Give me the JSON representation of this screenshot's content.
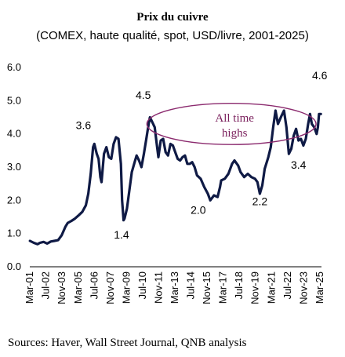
{
  "chart_data": {
    "type": "line",
    "title": "Prix du cuivre",
    "subtitle": "(COMEX, haute qualité, spot, USD/livre, 2001-2025)",
    "source": "Sources: Haver, Wall Street Journal, QNB analysis",
    "ylim": [
      0,
      6
    ],
    "yticks": [
      "0.0",
      "1.0",
      "2.0",
      "3.0",
      "4.0",
      "5.0",
      "6.0"
    ],
    "xlim": [
      2001.16,
      2025.3
    ],
    "xticks": [
      {
        "label": "Mar-01",
        "x": 2001.17
      },
      {
        "label": "Jul-02",
        "x": 2002.5
      },
      {
        "label": "Nov-03",
        "x": 2003.83
      },
      {
        "label": "Mar-05",
        "x": 2005.17
      },
      {
        "label": "Jul-06",
        "x": 2006.5
      },
      {
        "label": "Nov-07",
        "x": 2007.83
      },
      {
        "label": "Mar-09",
        "x": 2009.17
      },
      {
        "label": "Jul-10",
        "x": 2010.5
      },
      {
        "label": "Nov-11",
        "x": 2011.83
      },
      {
        "label": "Mar-13",
        "x": 2013.17
      },
      {
        "label": "Jul-14",
        "x": 2014.5
      },
      {
        "label": "Nov-15",
        "x": 2015.83
      },
      {
        "label": "Mar-17",
        "x": 2017.17
      },
      {
        "label": "Jul-18",
        "x": 2018.5
      },
      {
        "label": "Nov-19",
        "x": 2019.83
      },
      {
        "label": "Mar-21",
        "x": 2021.17
      },
      {
        "label": "Jul-22",
        "x": 2022.5
      },
      {
        "label": "Nov-23",
        "x": 2023.83
      },
      {
        "label": "Mar-25",
        "x": 2025.17
      }
    ],
    "line_color": "#0f1a45",
    "ellipse_color": "#8b2a6e",
    "series": [
      {
        "x": [
          2001.17,
          2001.5,
          2001.8,
          2002.0,
          2002.3,
          2002.6,
          2002.9,
          2003.2,
          2003.5,
          2003.8,
          2004.1,
          2004.3,
          2004.6,
          2004.9,
          2005.2,
          2005.5,
          2005.8,
          2006.0,
          2006.2,
          2006.4,
          2006.5,
          2006.7,
          2006.85,
          2007.0,
          2007.1,
          2007.3,
          2007.5,
          2007.7,
          2007.9,
          2008.1,
          2008.3,
          2008.5,
          2008.7,
          2008.8,
          2008.92,
          2009.0,
          2009.2,
          2009.4,
          2009.6,
          2009.8,
          2010.0,
          2010.2,
          2010.4,
          2010.6,
          2010.8,
          2011.0,
          2011.1,
          2011.3,
          2011.5,
          2011.7,
          2011.8,
          2012.0,
          2012.2,
          2012.4,
          2012.6,
          2012.8,
          2013.0,
          2013.2,
          2013.4,
          2013.6,
          2013.8,
          2014.0,
          2014.2,
          2014.4,
          2014.6,
          2014.8,
          2015.0,
          2015.3,
          2015.6,
          2015.9,
          2016.1,
          2016.4,
          2016.7,
          2016.9,
          2017.0,
          2017.3,
          2017.6,
          2017.9,
          2018.1,
          2018.4,
          2018.6,
          2018.9,
          2019.2,
          2019.5,
          2019.8,
          2020.0,
          2020.2,
          2020.4,
          2020.6,
          2020.9,
          2021.1,
          2021.3,
          2021.5,
          2021.7,
          2022.0,
          2022.2,
          2022.4,
          2022.6,
          2022.8,
          2023.0,
          2023.2,
          2023.4,
          2023.6,
          2023.8,
          2024.0,
          2024.2,
          2024.35,
          2024.5,
          2024.7,
          2024.9,
          2025.0,
          2025.1,
          2025.25
        ],
        "values": [
          0.78,
          0.72,
          0.68,
          0.72,
          0.75,
          0.7,
          0.76,
          0.78,
          0.8,
          0.95,
          1.2,
          1.32,
          1.38,
          1.45,
          1.55,
          1.65,
          1.85,
          2.2,
          2.8,
          3.6,
          3.7,
          3.4,
          3.25,
          2.7,
          2.55,
          3.4,
          3.6,
          3.3,
          3.25,
          3.7,
          3.9,
          3.85,
          3.1,
          2.0,
          1.4,
          1.45,
          1.75,
          2.3,
          2.85,
          3.1,
          3.35,
          3.2,
          3.0,
          3.4,
          3.85,
          4.3,
          4.5,
          4.35,
          4.2,
          3.6,
          3.3,
          3.8,
          3.85,
          3.45,
          3.35,
          3.7,
          3.65,
          3.45,
          3.25,
          3.2,
          3.3,
          3.35,
          3.1,
          3.1,
          3.15,
          3.0,
          2.75,
          2.65,
          2.4,
          2.2,
          2.0,
          2.15,
          2.1,
          2.4,
          2.6,
          2.65,
          2.8,
          3.1,
          3.2,
          3.05,
          2.85,
          2.7,
          2.8,
          2.7,
          2.65,
          2.55,
          2.2,
          2.45,
          2.95,
          3.3,
          3.6,
          4.2,
          4.7,
          4.3,
          4.55,
          4.7,
          4.2,
          3.4,
          3.55,
          3.95,
          4.15,
          3.8,
          3.85,
          3.65,
          3.85,
          4.3,
          4.6,
          4.3,
          4.2,
          4.0,
          4.2,
          4.6,
          4.6
        ]
      }
    ],
    "annotations": [
      {
        "text": "3.6",
        "x": 2005.6,
        "y": 4.15
      },
      {
        "text": "1.4",
        "x": 2008.75,
        "y": 0.85
      },
      {
        "text": "4.5",
        "x": 2010.55,
        "y": 5.05
      },
      {
        "text": "2.0",
        "x": 2015.1,
        "y": 1.6
      },
      {
        "text": "2.2",
        "x": 2020.2,
        "y": 1.85
      },
      {
        "text": "3.4",
        "x": 2023.4,
        "y": 2.95
      },
      {
        "text": "4.6",
        "x": 2025.15,
        "y": 5.65
      }
    ],
    "highlight": {
      "label_line1": "All time",
      "label_line2": "highs",
      "center_x": 2017.85,
      "center_y": 4.3,
      "half_width_years": 7.0,
      "half_height_value": 0.62
    }
  }
}
